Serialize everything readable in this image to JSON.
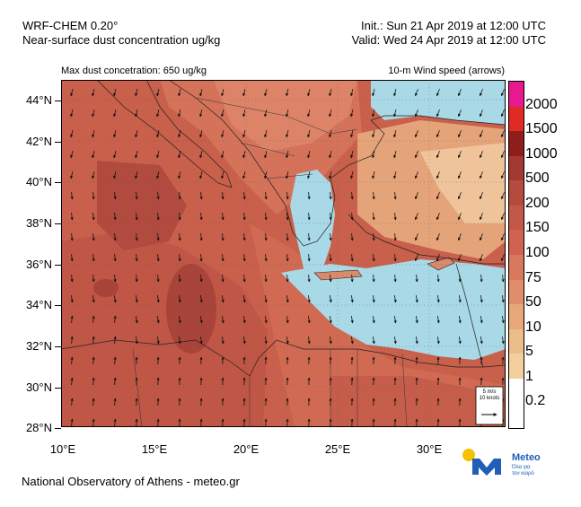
{
  "header": {
    "model": "WRF-CHEM 0.20°",
    "variable": "Near-surface dust concentration ug/kg",
    "init": "Init.:  Sun 21 Apr 2019 at 12:00 UTC",
    "valid": "Valid: Wed 24 Apr 2019 at 12:00 UTC"
  },
  "map": {
    "max_note": "Max dust concetration: 650 ug/kg",
    "wind_note": "10-m Wind speed (arrows)",
    "lat_labels": [
      "44°N",
      "42°N",
      "40°N",
      "38°N",
      "36°N",
      "34°N",
      "32°N",
      "30°N",
      "28°N"
    ],
    "lon_labels": [
      "10°E",
      "15°E",
      "20°E",
      "25°E",
      "30°E"
    ],
    "wind_key": {
      "line1": "5 m/s",
      "line2": "10 knots"
    }
  },
  "colorbar": {
    "labels": [
      "2000",
      "1500",
      "1000",
      "500",
      "200",
      "150",
      "100",
      "75",
      "50",
      "10",
      "5",
      "1",
      "0.2"
    ],
    "colors": [
      "#e8188e",
      "#e02a24",
      "#8e1e1c",
      "#a23a32",
      "#b44b3e",
      "#c25847",
      "#cf6350",
      "#d8785c",
      "#df8e69",
      "#e7a77a",
      "#ecbc8b",
      "#f2cf9b",
      "#ffffff",
      "#ffffff"
    ]
  },
  "footer": {
    "credit": "National Observatory of Athens - meteo.gr",
    "logo_name": "Meteo",
    "logo_tag1": "Όλα για",
    "logo_tag2": "τον καιρό"
  }
}
